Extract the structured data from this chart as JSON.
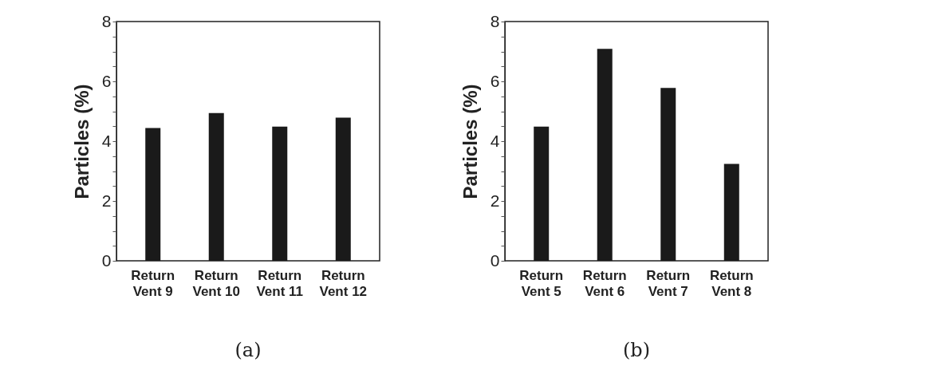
{
  "chart_data": [
    {
      "type": "bar",
      "categories": [
        "Return Vent 9",
        "Return Vent 10",
        "Return Vent 11",
        "Return Vent 12"
      ],
      "values": [
        4.44,
        4.94,
        4.49,
        4.79
      ],
      "color": "#1a1a1a",
      "ylabel": "Particles (%)",
      "ylim": [
        0,
        8
      ],
      "yticks": [
        0,
        {
          "value": 0.5,
          "label": null
        },
        {
          "value": 1,
          "label": null
        },
        {
          "value": 1.5,
          "label": null
        },
        2,
        {
          "value": 2.5,
          "label": null
        },
        {
          "value": 3,
          "label": null
        },
        {
          "value": 3.5,
          "label": null
        },
        4,
        {
          "value": 4.5,
          "label": null
        },
        {
          "value": 5,
          "label": null
        },
        {
          "value": 5.5,
          "label": null
        },
        6,
        {
          "value": 6.5,
          "label": null
        },
        {
          "value": 7,
          "label": null
        },
        {
          "value": 7.5,
          "label": null
        },
        8
      ],
      "grid": false,
      "annotations": [
        "(a)"
      ]
    },
    {
      "type": "bar",
      "categories": [
        "Return Vent 5",
        "Return Vent 6",
        "Return Vent 7",
        "Return Vent 8"
      ],
      "values": [
        4.49,
        7.09,
        5.78,
        3.24
      ],
      "color": "#1a1a1a",
      "ylabel": "Particles (%)",
      "ylim": [
        0,
        8
      ],
      "yticks": [
        0,
        {
          "value": 0.5,
          "label": null
        },
        {
          "value": 1,
          "label": null
        },
        {
          "value": 1.5,
          "label": null
        },
        2,
        {
          "value": 2.5,
          "label": null
        },
        {
          "value": 3,
          "label": null
        },
        {
          "value": 3.5,
          "label": null
        },
        4,
        {
          "value": 4.5,
          "label": null
        },
        {
          "value": 5,
          "label": null
        },
        {
          "value": 5.5,
          "label": null
        },
        6,
        {
          "value": 6.5,
          "label": null
        },
        {
          "value": 7,
          "label": null
        },
        {
          "value": 7.5,
          "label": null
        },
        8
      ],
      "grid": false,
      "annotations": [
        "(b)"
      ]
    }
  ]
}
